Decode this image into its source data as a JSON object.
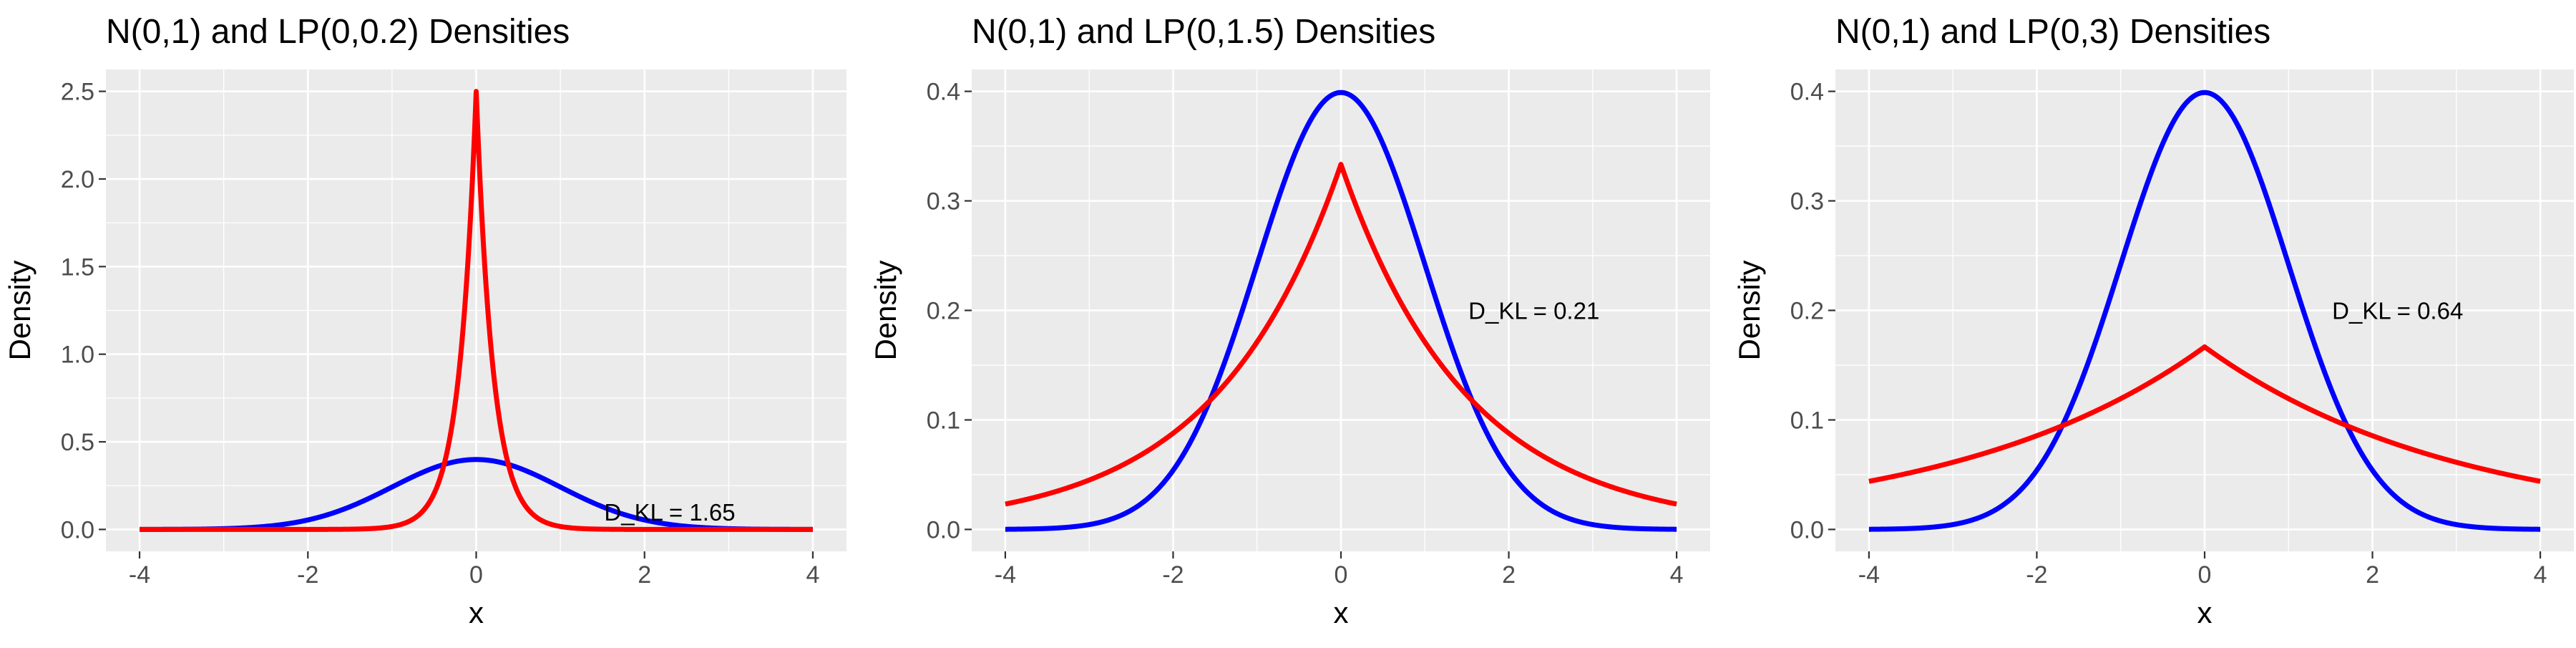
{
  "chart_data": [
    {
      "type": "line",
      "title": "N(0,1) and LP(0,0.2) Densities",
      "xlabel": "x",
      "ylabel": "Density",
      "xlim": [
        -4,
        4
      ],
      "ylim": [
        0,
        2.5
      ],
      "x_ticks": [
        -4,
        -2,
        0,
        2,
        4
      ],
      "x_tick_labels": [
        "-4",
        "-2",
        "0",
        "2",
        "4"
      ],
      "y_ticks": [
        0,
        0.5,
        1,
        1.5,
        2,
        2.5
      ],
      "y_tick_labels": [
        "0.0",
        "0.5",
        "1.0",
        "1.5",
        "2.0",
        "2.5"
      ],
      "grid": true,
      "annotation": {
        "text": "D_KL = 1.65",
        "x": 2.3,
        "y": 0.1
      },
      "series": [
        {
          "color": "#0000ff",
          "family": "normal",
          "mu": 0,
          "sigma": 1,
          "x": [
            -4,
            -3,
            -2,
            -1.5,
            -1,
            -0.5,
            0,
            0.5,
            1,
            1.5,
            2,
            3,
            4
          ],
          "y": [
            0.0001,
            0.0044,
            0.054,
            0.1295,
            0.242,
            0.3521,
            0.3989,
            0.3521,
            0.242,
            0.1295,
            0.054,
            0.0044,
            0.0001
          ]
        },
        {
          "color": "#ff0000",
          "family": "laplace",
          "mu": 0,
          "b": 0.2,
          "x": [
            -4,
            -2,
            -1,
            -0.5,
            -0.25,
            -0.1,
            0,
            0.1,
            0.25,
            0.5,
            1,
            2,
            4
          ],
          "y": [
            0,
            0.0001,
            0.0168,
            0.2052,
            0.7163,
            1.5163,
            2.5,
            1.5163,
            0.7163,
            0.2052,
            0.0168,
            0.0001,
            0
          ]
        }
      ]
    },
    {
      "type": "line",
      "title": "N(0,1) and LP(0,1.5) Densities",
      "xlabel": "x",
      "ylabel": "Density",
      "xlim": [
        -4,
        4
      ],
      "ylim": [
        0,
        0.4
      ],
      "x_ticks": [
        -4,
        -2,
        0,
        2,
        4
      ],
      "x_tick_labels": [
        "-4",
        "-2",
        "0",
        "2",
        "4"
      ],
      "y_ticks": [
        0,
        0.1,
        0.2,
        0.3,
        0.4
      ],
      "y_tick_labels": [
        "0.0",
        "0.1",
        "0.2",
        "0.3",
        "0.4"
      ],
      "grid": true,
      "annotation": {
        "text": "D_KL = 0.21",
        "x": 2.3,
        "y": 0.2
      },
      "series": [
        {
          "color": "#0000ff",
          "family": "normal",
          "mu": 0,
          "sigma": 1,
          "x": [
            -4,
            -3,
            -2,
            -1.5,
            -1,
            -0.5,
            0,
            0.5,
            1,
            1.5,
            2,
            3,
            4
          ],
          "y": [
            0.0001,
            0.0044,
            0.054,
            0.1295,
            0.242,
            0.3521,
            0.3989,
            0.3521,
            0.242,
            0.1295,
            0.054,
            0.0044,
            0.0001
          ]
        },
        {
          "color": "#ff0000",
          "family": "laplace",
          "mu": 0,
          "b": 1.5,
          "x": [
            -4,
            -3,
            -2,
            -1,
            0,
            1,
            2,
            3,
            4
          ],
          "y": [
            0.0232,
            0.0451,
            0.0879,
            0.1711,
            0.3333,
            0.1711,
            0.0879,
            0.0451,
            0.0232
          ]
        }
      ]
    },
    {
      "type": "line",
      "title": "N(0,1) and LP(0,3) Densities",
      "xlabel": "x",
      "ylabel": "Density",
      "xlim": [
        -4,
        4
      ],
      "ylim": [
        0,
        0.4
      ],
      "x_ticks": [
        -4,
        -2,
        0,
        2,
        4
      ],
      "x_tick_labels": [
        "-4",
        "-2",
        "0",
        "2",
        "4"
      ],
      "y_ticks": [
        0,
        0.1,
        0.2,
        0.3,
        0.4
      ],
      "y_tick_labels": [
        "0.0",
        "0.1",
        "0.2",
        "0.3",
        "0.4"
      ],
      "grid": true,
      "annotation": {
        "text": "D_KL = 0.64",
        "x": 2.3,
        "y": 0.2
      },
      "series": [
        {
          "color": "#0000ff",
          "family": "normal",
          "mu": 0,
          "sigma": 1,
          "x": [
            -4,
            -3,
            -2,
            -1.5,
            -1,
            -0.5,
            0,
            0.5,
            1,
            1.5,
            2,
            3,
            4
          ],
          "y": [
            0.0001,
            0.0044,
            0.054,
            0.1295,
            0.242,
            0.3521,
            0.3989,
            0.3521,
            0.242,
            0.1295,
            0.054,
            0.0044,
            0.0001
          ]
        },
        {
          "color": "#ff0000",
          "family": "laplace",
          "mu": 0,
          "b": 3,
          "x": [
            -4,
            -3,
            -2,
            -1,
            0,
            1,
            2,
            3,
            4
          ],
          "y": [
            0.0439,
            0.0613,
            0.0856,
            0.1194,
            0.1667,
            0.1194,
            0.0856,
            0.0613,
            0.0439
          ]
        }
      ]
    }
  ]
}
